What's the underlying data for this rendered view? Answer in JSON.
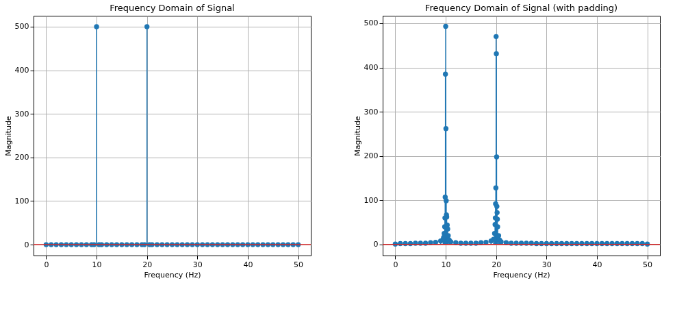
{
  "chart_data": [
    {
      "type": "lollipop",
      "title": "Frequency Domain of Signal",
      "xlabel": "Frequency (Hz)",
      "ylabel": "Magnitude",
      "x": [
        0,
        1,
        2,
        3,
        4,
        5,
        6,
        7,
        8,
        9,
        9.5,
        10,
        10.5,
        11,
        12,
        13,
        14,
        15,
        16,
        17,
        18,
        19,
        19.5,
        20,
        20.5,
        21,
        22,
        23,
        24,
        25,
        26,
        27,
        28,
        29,
        30,
        31,
        32,
        33,
        34,
        35,
        36,
        37,
        38,
        39,
        40,
        41,
        42,
        43,
        44,
        45,
        46,
        47,
        48,
        49,
        50
      ],
      "series": [
        {
          "color": "#1f77b4",
          "values": [
            0,
            0,
            0,
            0,
            0,
            0,
            0,
            0,
            0,
            0,
            0,
            500,
            0,
            0,
            0,
            0,
            0,
            0,
            0,
            0,
            0,
            0,
            0,
            500,
            0,
            0,
            0,
            0,
            0,
            0,
            0,
            0,
            0,
            0,
            0,
            0,
            0,
            0,
            0,
            0,
            0,
            0,
            0,
            0,
            0,
            0,
            0,
            0,
            0,
            0,
            0,
            0,
            0,
            0,
            0
          ]
        }
      ],
      "ref_lines": [
        {
          "axis": "y",
          "value": 0,
          "color": "#d62728"
        }
      ],
      "marker": "circle",
      "grid": true,
      "xlim": [
        -2.5,
        52.5
      ],
      "ylim": [
        -25,
        525
      ],
      "xticks": [
        0,
        10,
        20,
        30,
        40,
        50
      ],
      "yticks": [
        0,
        100,
        200,
        300,
        400,
        500
      ]
    },
    {
      "type": "lollipop",
      "title": "Frequency Domain of Signal (with padding)",
      "xlabel": "Frequency (Hz)",
      "ylabel": "Magnitude",
      "x": [
        0,
        1,
        2,
        3,
        4,
        5,
        6,
        7,
        8,
        9,
        9.5,
        9.6,
        9.7,
        9.8,
        9.85,
        9.9,
        9.95,
        10,
        10.05,
        10.1,
        10.15,
        10.2,
        10.3,
        10.4,
        10.5,
        10.7,
        11,
        12,
        13,
        14,
        15,
        16,
        17,
        18,
        19,
        19.5,
        19.7,
        19.8,
        19.85,
        19.9,
        19.95,
        20,
        20.05,
        20.1,
        20.15,
        20.2,
        20.25,
        20.3,
        20.5,
        20.7,
        21,
        22,
        23,
        24,
        25,
        26,
        27,
        28,
        29,
        30,
        31,
        32,
        33,
        34,
        35,
        36,
        37,
        38,
        39,
        40,
        41,
        42,
        43,
        44,
        45,
        46,
        47,
        48,
        49,
        50
      ],
      "series": [
        {
          "color": "#1f77b4",
          "values": [
            1,
            2,
            2,
            2,
            3,
            3,
            3,
            4,
            5,
            8,
            12,
            16,
            25,
            40,
            60,
            107,
            385,
            493,
            262,
            99,
            67,
            62,
            44,
            35,
            20,
            10,
            6,
            4,
            3,
            3,
            3,
            3,
            4,
            5,
            8,
            12,
            25,
            45,
            60,
            92,
            128,
            470,
            431,
            198,
            86,
            72,
            57,
            40,
            20,
            10,
            6,
            4,
            3,
            3,
            3,
            3,
            3,
            2,
            2,
            2,
            2,
            2,
            2,
            2,
            2,
            2,
            2,
            2,
            2,
            2,
            2,
            2,
            2,
            2,
            2,
            2,
            2,
            2,
            2,
            1
          ]
        }
      ],
      "ref_lines": [
        {
          "axis": "y",
          "value": 0,
          "color": "#d62728"
        }
      ],
      "marker": "circle",
      "grid": true,
      "xlim": [
        -2.5,
        52.5
      ],
      "ylim": [
        -25,
        517
      ],
      "xticks": [
        0,
        10,
        20,
        30,
        40,
        50
      ],
      "yticks": [
        0,
        100,
        200,
        300,
        400,
        500
      ]
    }
  ]
}
